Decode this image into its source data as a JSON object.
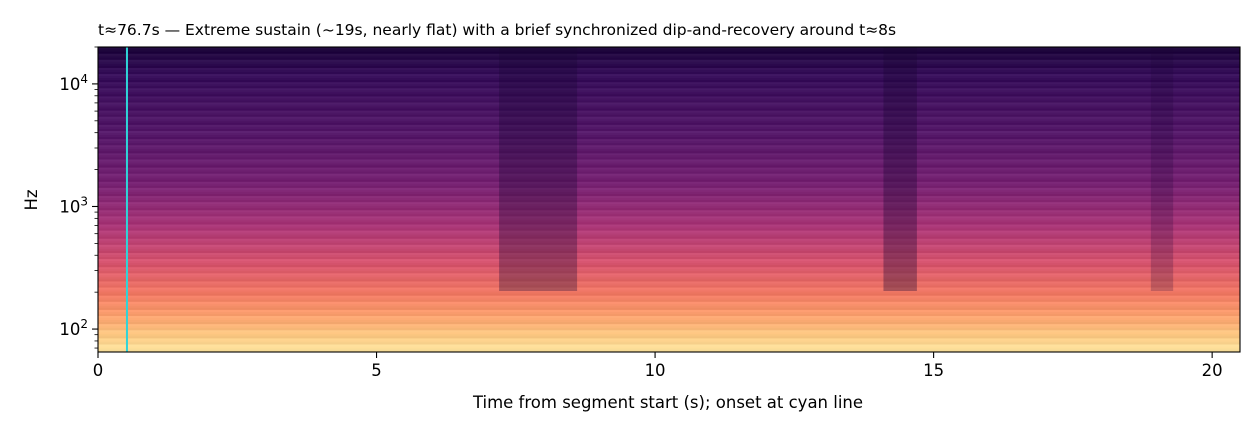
{
  "chart_data": {
    "type": "heatmap",
    "title": "t≈76.7s — Extreme sustain (~19s, nearly flat) with a brief synchronized dip-and-recovery around t≈8s",
    "xlabel": "Time from segment start (s); onset at cyan line",
    "ylabel": "Hz",
    "x_scale": "linear",
    "y_scale": "log",
    "xlim": [
      0,
      20.5
    ],
    "ylim": [
      65,
      20000
    ],
    "x_ticks": [
      {
        "value": 0,
        "label": "0"
      },
      {
        "value": 5,
        "label": "5"
      },
      {
        "value": 10,
        "label": "10"
      },
      {
        "value": 15,
        "label": "15"
      },
      {
        "value": 20,
        "label": "20"
      }
    ],
    "y_ticks": [
      {
        "value": 100,
        "base": "10",
        "exp": "2"
      },
      {
        "value": 1000,
        "base": "10",
        "exp": "3"
      },
      {
        "value": 10000,
        "base": "10",
        "exp": "4"
      }
    ],
    "onset_line": {
      "x": 0.52,
      "color": "#2fd4d8"
    },
    "colormap": "magma",
    "colors": {
      "onset": "#2fd4d8",
      "axis": "#000000"
    }
  }
}
